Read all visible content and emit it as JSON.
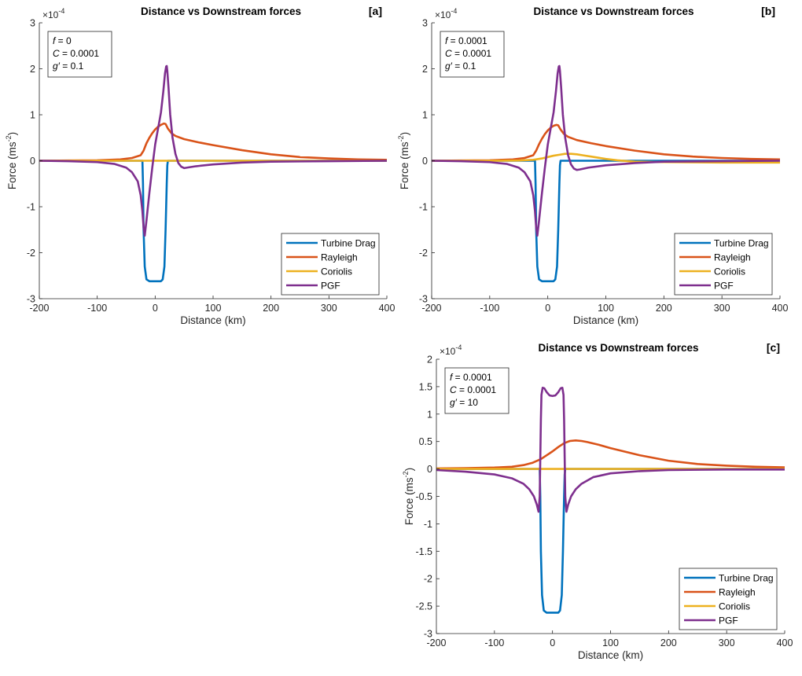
{
  "chart_data": [
    {
      "id": "a",
      "type": "line",
      "title": "Distance vs Downstream forces",
      "panel_tag": "[a]",
      "xlabel": "Distance (km)",
      "ylabel": "Force (ms^-2)",
      "ylabel_base": "Force (ms",
      "ylabel_exp": "-2",
      "ylabel_close": ")",
      "y_multiplier": "×10",
      "y_multiplier_exp": "-4",
      "xlim": [
        -200,
        400
      ],
      "ylim": [
        -3,
        3
      ],
      "xticks": [
        -200,
        -100,
        0,
        100,
        200,
        300,
        400
      ],
      "yticks": [
        -3,
        -2,
        -1,
        0,
        1,
        2,
        3
      ],
      "grid": false,
      "legend_position": "lower-right",
      "params": [
        "f = 0",
        "C = 0.0001",
        "g′ = 0.1"
      ],
      "series": [
        {
          "name": "Turbine Drag",
          "color": "#0072BD",
          "x": [
            -200,
            -22,
            -21,
            -20,
            -18,
            -15,
            -10,
            0,
            10,
            13,
            16,
            18,
            20,
            21,
            22,
            400
          ],
          "y": [
            0,
            0,
            -0.5,
            -1.5,
            -2.3,
            -2.58,
            -2.62,
            -2.62,
            -2.62,
            -2.58,
            -2.3,
            -1.5,
            -0.5,
            -0.1,
            0,
            0
          ]
        },
        {
          "name": "Rayleigh",
          "color": "#D95319",
          "x": [
            -200,
            -150,
            -100,
            -60,
            -40,
            -25,
            -20,
            -15,
            -10,
            -5,
            0,
            5,
            10,
            15,
            18,
            22,
            28,
            35,
            50,
            75,
            100,
            150,
            200,
            250,
            300,
            350,
            400
          ],
          "y": [
            0,
            0.005,
            0.01,
            0.03,
            0.06,
            0.12,
            0.22,
            0.38,
            0.5,
            0.6,
            0.68,
            0.74,
            0.78,
            0.81,
            0.8,
            0.7,
            0.6,
            0.54,
            0.47,
            0.4,
            0.34,
            0.23,
            0.14,
            0.08,
            0.05,
            0.03,
            0.02
          ]
        },
        {
          "name": "Coriolis",
          "color": "#EDB120",
          "x": [
            -200,
            400
          ],
          "y": [
            0,
            0
          ]
        },
        {
          "name": "PGF",
          "color": "#7E2F8E",
          "x": [
            -200,
            -150,
            -100,
            -70,
            -50,
            -40,
            -30,
            -25,
            -22,
            -20,
            -18,
            -15,
            -10,
            -5,
            0,
            5,
            10,
            14,
            17,
            19,
            20,
            21,
            23,
            26,
            30,
            35,
            40,
            45,
            50,
            55,
            70,
            100,
            150,
            200,
            300,
            400
          ],
          "y": [
            0,
            -0.01,
            -0.03,
            -0.07,
            -0.15,
            -0.25,
            -0.45,
            -0.75,
            -1.1,
            -1.45,
            -1.63,
            -1.3,
            -0.7,
            -0.15,
            0.35,
            0.7,
            1.05,
            1.5,
            1.9,
            2.05,
            2.06,
            1.95,
            1.6,
            1.0,
            0.5,
            0.15,
            -0.05,
            -0.13,
            -0.16,
            -0.15,
            -0.12,
            -0.08,
            -0.04,
            -0.02,
            -0.01,
            0
          ]
        }
      ]
    },
    {
      "id": "b",
      "type": "line",
      "title": "Distance vs Downstream forces",
      "panel_tag": "[b]",
      "xlabel": "Distance (km)",
      "ylabel": "Force (ms^-2)",
      "ylabel_base": "Force (ms",
      "ylabel_exp": "-2",
      "ylabel_close": ")",
      "y_multiplier": "×10",
      "y_multiplier_exp": "-4",
      "xlim": [
        -200,
        400
      ],
      "ylim": [
        -3,
        3
      ],
      "xticks": [
        -200,
        -100,
        0,
        100,
        200,
        300,
        400
      ],
      "yticks": [
        -3,
        -2,
        -1,
        0,
        1,
        2,
        3
      ],
      "grid": false,
      "legend_position": "lower-right",
      "params": [
        "f = 0.0001",
        "C = 0.0001",
        "g′ = 0.1"
      ],
      "series": [
        {
          "name": "Turbine Drag",
          "color": "#0072BD",
          "x": [
            -200,
            -22,
            -21,
            -20,
            -18,
            -15,
            -10,
            0,
            10,
            13,
            16,
            18,
            20,
            21,
            22,
            400
          ],
          "y": [
            0,
            0,
            -0.5,
            -1.5,
            -2.3,
            -2.58,
            -2.62,
            -2.62,
            -2.62,
            -2.58,
            -2.3,
            -1.5,
            -0.5,
            -0.1,
            0,
            0
          ]
        },
        {
          "name": "Rayleigh",
          "color": "#D95319",
          "x": [
            -200,
            -150,
            -100,
            -60,
            -40,
            -25,
            -20,
            -15,
            -10,
            -5,
            0,
            5,
            10,
            15,
            18,
            22,
            28,
            35,
            50,
            75,
            100,
            150,
            200,
            250,
            300,
            350,
            400
          ],
          "y": [
            0,
            0.005,
            0.01,
            0.03,
            0.06,
            0.12,
            0.22,
            0.36,
            0.48,
            0.58,
            0.66,
            0.72,
            0.76,
            0.78,
            0.77,
            0.68,
            0.58,
            0.52,
            0.45,
            0.38,
            0.32,
            0.22,
            0.14,
            0.09,
            0.06,
            0.04,
            0.03
          ]
        },
        {
          "name": "Coriolis",
          "color": "#EDB120",
          "x": [
            -200,
            -100,
            -50,
            -25,
            -10,
            0,
            10,
            20,
            30,
            40,
            50,
            60,
            80,
            100,
            120,
            150,
            200,
            300,
            400
          ],
          "y": [
            0,
            0,
            0.005,
            0.02,
            0.05,
            0.08,
            0.11,
            0.13,
            0.15,
            0.15,
            0.14,
            0.12,
            0.08,
            0.04,
            0.01,
            -0.02,
            -0.03,
            -0.04,
            -0.04
          ]
        },
        {
          "name": "PGF",
          "color": "#7E2F8E",
          "x": [
            -200,
            -150,
            -100,
            -70,
            -50,
            -40,
            -30,
            -25,
            -22,
            -20,
            -18,
            -15,
            -10,
            -5,
            0,
            5,
            10,
            14,
            17,
            19,
            20,
            21,
            23,
            26,
            30,
            35,
            40,
            45,
            50,
            55,
            70,
            100,
            150,
            200,
            300,
            400
          ],
          "y": [
            0,
            -0.01,
            -0.03,
            -0.07,
            -0.15,
            -0.25,
            -0.45,
            -0.75,
            -1.1,
            -1.45,
            -1.63,
            -1.3,
            -0.7,
            -0.15,
            0.35,
            0.7,
            1.05,
            1.5,
            1.9,
            2.05,
            2.06,
            1.95,
            1.6,
            1.0,
            0.5,
            0.12,
            -0.08,
            -0.17,
            -0.2,
            -0.19,
            -0.15,
            -0.1,
            -0.05,
            -0.02,
            -0.01,
            0
          ]
        }
      ]
    },
    {
      "id": "c",
      "type": "line",
      "title": "Distance vs Downstream forces",
      "panel_tag": "[c]",
      "xlabel": "Distance (km)",
      "ylabel": "Force (ms^-2)",
      "ylabel_base": "Force (ms",
      "ylabel_exp": "-2",
      "ylabel_close": ")",
      "y_multiplier": "×10",
      "y_multiplier_exp": "-4",
      "xlim": [
        -200,
        400
      ],
      "ylim": [
        -3,
        2
      ],
      "xticks": [
        -200,
        -100,
        0,
        100,
        200,
        300,
        400
      ],
      "yticks": [
        -3,
        -2.5,
        -2,
        -1.5,
        -1,
        -0.5,
        0,
        0.5,
        1,
        1.5,
        2
      ],
      "grid": false,
      "legend_position": "lower-right",
      "params": [
        "f = 0.0001",
        "C = 0.0001",
        "g′ = 10"
      ],
      "series": [
        {
          "name": "Turbine Drag",
          "color": "#0072BD",
          "x": [
            -200,
            -22,
            -21,
            -20,
            -18,
            -15,
            -10,
            0,
            10,
            13,
            16,
            18,
            20,
            21,
            22,
            400
          ],
          "y": [
            0,
            0,
            -0.5,
            -1.5,
            -2.3,
            -2.58,
            -2.62,
            -2.62,
            -2.62,
            -2.58,
            -2.3,
            -1.5,
            -0.5,
            -0.1,
            0,
            0
          ]
        },
        {
          "name": "Rayleigh",
          "color": "#D95319",
          "x": [
            -200,
            -150,
            -100,
            -70,
            -50,
            -35,
            -20,
            -10,
            0,
            10,
            20,
            30,
            40,
            50,
            60,
            80,
            100,
            150,
            200,
            250,
            300,
            350,
            400
          ],
          "y": [
            0.01,
            0.015,
            0.025,
            0.04,
            0.07,
            0.11,
            0.18,
            0.25,
            0.32,
            0.4,
            0.47,
            0.51,
            0.52,
            0.51,
            0.49,
            0.44,
            0.38,
            0.25,
            0.15,
            0.09,
            0.06,
            0.04,
            0.03
          ]
        },
        {
          "name": "Coriolis",
          "color": "#EDB120",
          "x": [
            -200,
            400
          ],
          "y": [
            0,
            0
          ]
        },
        {
          "name": "PGF",
          "color": "#7E2F8E",
          "x": [
            -200,
            -150,
            -100,
            -70,
            -50,
            -40,
            -32,
            -27,
            -24,
            -22,
            -21,
            -20,
            -19,
            -17,
            -14,
            -10,
            -5,
            0,
            5,
            10,
            14,
            17,
            19,
            20,
            21,
            22,
            24,
            27,
            32,
            40,
            50,
            70,
            100,
            150,
            200,
            300,
            400
          ],
          "y": [
            -0.02,
            -0.05,
            -0.1,
            -0.17,
            -0.27,
            -0.37,
            -0.5,
            -0.65,
            -0.78,
            -0.5,
            0.2,
            0.9,
            1.35,
            1.48,
            1.47,
            1.4,
            1.34,
            1.33,
            1.34,
            1.4,
            1.47,
            1.48,
            1.35,
            0.9,
            0.2,
            -0.5,
            -0.78,
            -0.65,
            -0.5,
            -0.37,
            -0.27,
            -0.15,
            -0.08,
            -0.04,
            -0.02,
            -0.01,
            -0.01
          ]
        }
      ]
    }
  ]
}
